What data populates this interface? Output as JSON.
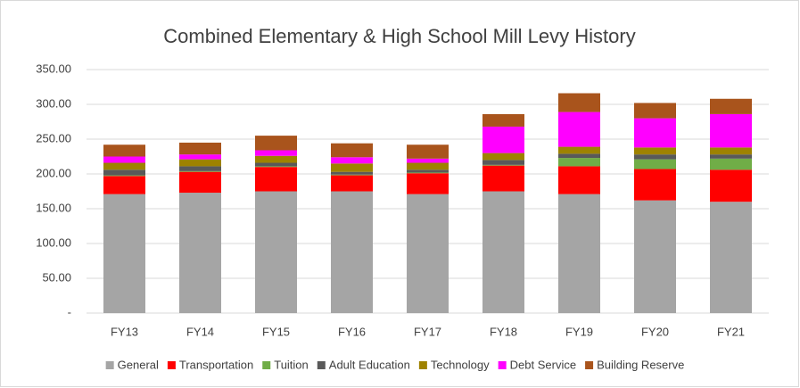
{
  "chart_data": {
    "type": "stacked_bar",
    "title": "Combined Elementary & High School Mill Levy History",
    "categories": [
      "FY13",
      "FY14",
      "FY15",
      "FY16",
      "FY17",
      "FY18",
      "FY19",
      "FY20",
      "FY21"
    ],
    "series": [
      {
        "name": "General",
        "color": "#a5a5a5",
        "values": [
          171,
          173,
          175,
          175,
          171,
          175,
          171,
          162,
          160
        ]
      },
      {
        "name": "Transportation",
        "color": "#ff0000",
        "values": [
          26,
          30,
          35,
          23,
          30,
          37,
          40,
          45,
          46
        ]
      },
      {
        "name": "Tuition",
        "color": "#70ad47",
        "values": [
          1,
          1,
          1,
          1,
          1,
          1,
          12,
          14,
          16
        ]
      },
      {
        "name": "Adult Education",
        "color": "#595959",
        "values": [
          8,
          7,
          5,
          4,
          4,
          7,
          6,
          7,
          6
        ]
      },
      {
        "name": "Technology",
        "color": "#9e8200",
        "values": [
          10,
          10,
          10,
          12,
          10,
          10,
          10,
          10,
          10
        ]
      },
      {
        "name": "Debt Service",
        "color": "#ff00ff",
        "values": [
          9,
          7,
          8,
          9,
          6,
          38,
          50,
          42,
          48
        ]
      },
      {
        "name": "Building Reserve",
        "color": "#a9541c",
        "values": [
          17,
          17,
          21,
          20,
          20,
          18,
          27,
          22,
          22
        ]
      }
    ],
    "ylim": [
      0,
      350
    ],
    "yticks": [
      {
        "value": 0,
        "label": "-"
      },
      {
        "value": 50,
        "label": "50.00"
      },
      {
        "value": 100,
        "label": "100.00"
      },
      {
        "value": 150,
        "label": "150.00"
      },
      {
        "value": 200,
        "label": "200.00"
      },
      {
        "value": 250,
        "label": "250.00"
      },
      {
        "value": 300,
        "label": "300.00"
      },
      {
        "value": 350,
        "label": "350.00"
      }
    ],
    "grid": true,
    "legend": "bottom"
  }
}
